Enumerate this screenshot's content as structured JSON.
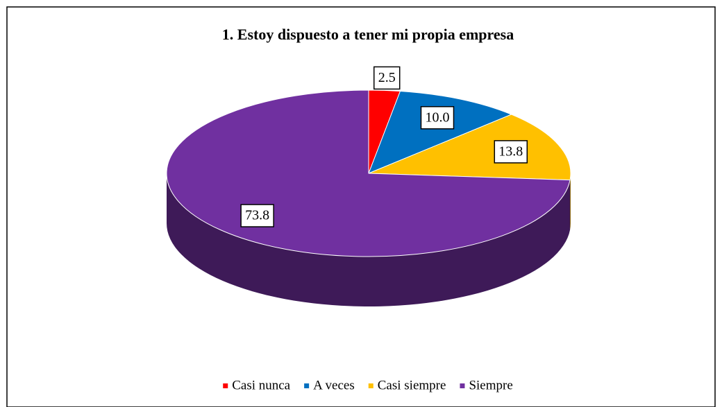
{
  "chart_data": {
    "type": "pie",
    "title": "1. Estoy dispuesto a tener mi propia empresa",
    "categories": [
      "Casi nunca",
      "A veces",
      "Casi siempre",
      "Siempre"
    ],
    "values": [
      2.5,
      10.0,
      13.8,
      73.8
    ],
    "value_labels": [
      "2.5",
      "10.0",
      "13.8",
      "73.8"
    ],
    "colors": [
      "#ff0000",
      "#0070c0",
      "#ffc000",
      "#7030a0"
    ],
    "legend": "bottom"
  }
}
